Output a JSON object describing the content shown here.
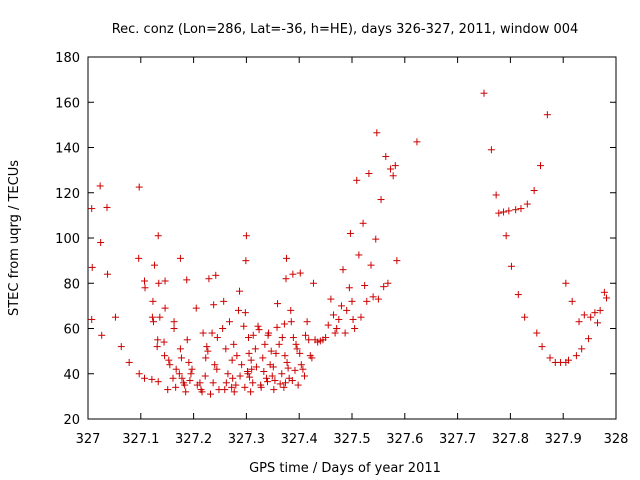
{
  "chart_data": {
    "type": "scatter",
    "title": "Rec. conz (Lon=286, Lat=-36, h=HE), days 326-327, 2011, window 004",
    "xlabel": "GPS time / Days of year 2011",
    "ylabel": "STEC from uqrg / TECUs",
    "xlim": [
      327,
      328
    ],
    "ylim": [
      20,
      180
    ],
    "xticks": [
      "327",
      "327.1",
      "327.2",
      "327.3",
      "327.4",
      "327.5",
      "327.6",
      "327.7",
      "327.8",
      "327.9",
      "328"
    ],
    "yticks": [
      "20",
      "40",
      "60",
      "80",
      "100",
      "120",
      "140",
      "160",
      "180"
    ],
    "grid": false,
    "marker": "+",
    "color": "#cc0000",
    "series": [
      {
        "points": [
          [
            327.007,
            113
          ],
          [
            327.023,
            123
          ],
          [
            327.036,
            113.5
          ],
          [
            327.097,
            122.5
          ],
          [
            327.008,
            87
          ],
          [
            327.024,
            98
          ],
          [
            327.052,
            65
          ],
          [
            327.007,
            64
          ],
          [
            327.026,
            57
          ],
          [
            327.037,
            84
          ],
          [
            327.063,
            52
          ],
          [
            327.078,
            45
          ],
          [
            327.096,
            91
          ],
          [
            327.097,
            40
          ],
          [
            327.107,
            81
          ],
          [
            327.107,
            38
          ],
          [
            327.108,
            78
          ],
          [
            327.121,
            37.5
          ],
          [
            327.123,
            72
          ],
          [
            327.122,
            65
          ],
          [
            327.124,
            63
          ],
          [
            327.126,
            88
          ],
          [
            327.133,
            101
          ],
          [
            327.134,
            80
          ],
          [
            327.131,
            52
          ],
          [
            327.132,
            55
          ],
          [
            327.133,
            36.5
          ],
          [
            327.136,
            65
          ],
          [
            327.144,
            54
          ],
          [
            327.145,
            48
          ],
          [
            327.146,
            81
          ],
          [
            327.146,
            69
          ],
          [
            327.151,
            33
          ],
          [
            327.153,
            46
          ],
          [
            327.155,
            44
          ],
          [
            327.161,
            38
          ],
          [
            327.163,
            63
          ],
          [
            327.163,
            60
          ],
          [
            327.166,
            34
          ],
          [
            327.167,
            42
          ],
          [
            327.173,
            40
          ],
          [
            327.175,
            91
          ],
          [
            327.175,
            51
          ],
          [
            327.177,
            47
          ],
          [
            327.178,
            38
          ],
          [
            327.181,
            36
          ],
          [
            327.183,
            35
          ],
          [
            327.185,
            32
          ],
          [
            327.187,
            81.5
          ],
          [
            327.188,
            55
          ],
          [
            327.191,
            45
          ],
          [
            327.193,
            37
          ],
          [
            327.195,
            40
          ],
          [
            327.197,
            42
          ],
          [
            327.205,
            69
          ],
          [
            327.207,
            35
          ],
          [
            327.212,
            36
          ],
          [
            327.214,
            33
          ],
          [
            327.216,
            32
          ],
          [
            327.218,
            58
          ],
          [
            327.222,
            39
          ],
          [
            327.223,
            47
          ],
          [
            327.225,
            52
          ],
          [
            327.227,
            50
          ],
          [
            327.229,
            82
          ],
          [
            327.232,
            31
          ],
          [
            327.235,
            58
          ],
          [
            327.237,
            36
          ],
          [
            327.238,
            70.5
          ],
          [
            327.24,
            44
          ],
          [
            327.242,
            83.5
          ],
          [
            327.244,
            42
          ],
          [
            327.245,
            56
          ],
          [
            327.248,
            33
          ],
          [
            327.255,
            60
          ],
          [
            327.257,
            72
          ],
          [
            327.259,
            33
          ],
          [
            327.261,
            51
          ],
          [
            327.262,
            36
          ],
          [
            327.265,
            40
          ],
          [
            327.268,
            63
          ],
          [
            327.272,
            34
          ],
          [
            327.273,
            46
          ],
          [
            327.274,
            38
          ],
          [
            327.276,
            53
          ],
          [
            327.277,
            32
          ],
          [
            327.28,
            35
          ],
          [
            327.282,
            48
          ],
          [
            327.285,
            68
          ],
          [
            327.287,
            76.5
          ],
          [
            327.288,
            39
          ],
          [
            327.291,
            44
          ],
          [
            327.295,
            61
          ],
          [
            327.297,
            34
          ],
          [
            327.298,
            67
          ],
          [
            327.299,
            90
          ],
          [
            327.3,
            101
          ],
          [
            327.302,
            41
          ],
          [
            327.303,
            40
          ],
          [
            327.304,
            56
          ],
          [
            327.305,
            49
          ],
          [
            327.306,
            38.5
          ],
          [
            327.308,
            32
          ],
          [
            327.309,
            46
          ],
          [
            327.31,
            42
          ],
          [
            327.312,
            36
          ],
          [
            327.313,
            57
          ],
          [
            327.317,
            51
          ],
          [
            327.319,
            43
          ],
          [
            327.322,
            61
          ],
          [
            327.324,
            59.5
          ],
          [
            327.327,
            35
          ],
          [
            327.328,
            34
          ],
          [
            327.331,
            47
          ],
          [
            327.333,
            41
          ],
          [
            327.335,
            53
          ],
          [
            327.338,
            38
          ],
          [
            327.34,
            36.5
          ],
          [
            327.341,
            57
          ],
          [
            327.342,
            58
          ],
          [
            327.345,
            44
          ],
          [
            327.347,
            50
          ],
          [
            327.349,
            39
          ],
          [
            327.351,
            43
          ],
          [
            327.352,
            33
          ],
          [
            327.354,
            37
          ],
          [
            327.356,
            49
          ],
          [
            327.358,
            60.5
          ],
          [
            327.359,
            71
          ],
          [
            327.362,
            53
          ],
          [
            327.364,
            35.5
          ],
          [
            327.367,
            40
          ],
          [
            327.368,
            56
          ],
          [
            327.371,
            34
          ],
          [
            327.372,
            62
          ],
          [
            327.373,
            48
          ],
          [
            327.374,
            36
          ],
          [
            327.375,
            82
          ],
          [
            327.376,
            91
          ],
          [
            327.377,
            45
          ],
          [
            327.379,
            42.5
          ],
          [
            327.381,
            38
          ],
          [
            327.384,
            68
          ],
          [
            327.385,
            63
          ],
          [
            327.387,
            37
          ],
          [
            327.388,
            84
          ],
          [
            327.389,
            56
          ],
          [
            327.392,
            41.5
          ],
          [
            327.394,
            53
          ],
          [
            327.396,
            51
          ],
          [
            327.398,
            35
          ],
          [
            327.401,
            49
          ],
          [
            327.402,
            84.5
          ],
          [
            327.404,
            44
          ],
          [
            327.407,
            42
          ],
          [
            327.41,
            39
          ],
          [
            327.412,
            57
          ],
          [
            327.415,
            63
          ],
          [
            327.418,
            55
          ],
          [
            327.421,
            48
          ],
          [
            327.424,
            47
          ],
          [
            327.427,
            80
          ],
          [
            327.43,
            55
          ],
          [
            327.435,
            54
          ],
          [
            327.44,
            54.5
          ],
          [
            327.445,
            55
          ],
          [
            327.45,
            56
          ],
          [
            327.455,
            61.5
          ],
          [
            327.46,
            73
          ],
          [
            327.465,
            66
          ],
          [
            327.468,
            58
          ],
          [
            327.471,
            60
          ],
          [
            327.475,
            64
          ],
          [
            327.48,
            70
          ],
          [
            327.483,
            86
          ],
          [
            327.487,
            58
          ],
          [
            327.49,
            68
          ],
          [
            327.495,
            78
          ],
          [
            327.497,
            102
          ],
          [
            327.5,
            72
          ],
          [
            327.502,
            64
          ],
          [
            327.505,
            60
          ],
          [
            327.509,
            125.5
          ],
          [
            327.513,
            92.5
          ],
          [
            327.517,
            65
          ],
          [
            327.521,
            106.5
          ],
          [
            327.524,
            79
          ],
          [
            327.528,
            72
          ],
          [
            327.532,
            128.5
          ],
          [
            327.536,
            88
          ],
          [
            327.54,
            74
          ],
          [
            327.545,
            99.5
          ],
          [
            327.547,
            146.5
          ],
          [
            327.55,
            73
          ],
          [
            327.555,
            117
          ],
          [
            327.56,
            78.5
          ],
          [
            327.564,
            136
          ],
          [
            327.568,
            80
          ],
          [
            327.573,
            130.5
          ],
          [
            327.578,
            127.5
          ],
          [
            327.582,
            132
          ],
          [
            327.585,
            90
          ],
          [
            327.623,
            142.5
          ],
          [
            327.75,
            164
          ],
          [
            327.764,
            139
          ],
          [
            327.773,
            119
          ],
          [
            327.778,
            111
          ],
          [
            327.787,
            111.5
          ],
          [
            327.792,
            101
          ],
          [
            327.797,
            112
          ],
          [
            327.802,
            87.5
          ],
          [
            327.81,
            112.5
          ],
          [
            327.815,
            75
          ],
          [
            327.82,
            113
          ],
          [
            327.827,
            65
          ],
          [
            327.832,
            115
          ],
          [
            327.845,
            121
          ],
          [
            327.85,
            58
          ],
          [
            327.857,
            132
          ],
          [
            327.86,
            52
          ],
          [
            327.87,
            154.5
          ],
          [
            327.875,
            47
          ],
          [
            327.885,
            45
          ],
          [
            327.895,
            45
          ],
          [
            327.905,
            80
          ],
          [
            327.905,
            45
          ],
          [
            327.91,
            46
          ],
          [
            327.917,
            72
          ],
          [
            327.925,
            48
          ],
          [
            327.93,
            63
          ],
          [
            327.935,
            51
          ],
          [
            327.94,
            66
          ],
          [
            327.948,
            55.5
          ],
          [
            327.952,
            65
          ],
          [
            327.96,
            67
          ],
          [
            327.965,
            62.5
          ],
          [
            327.97,
            68
          ],
          [
            327.978,
            76
          ],
          [
            327.982,
            73.5
          ]
        ]
      }
    ]
  }
}
